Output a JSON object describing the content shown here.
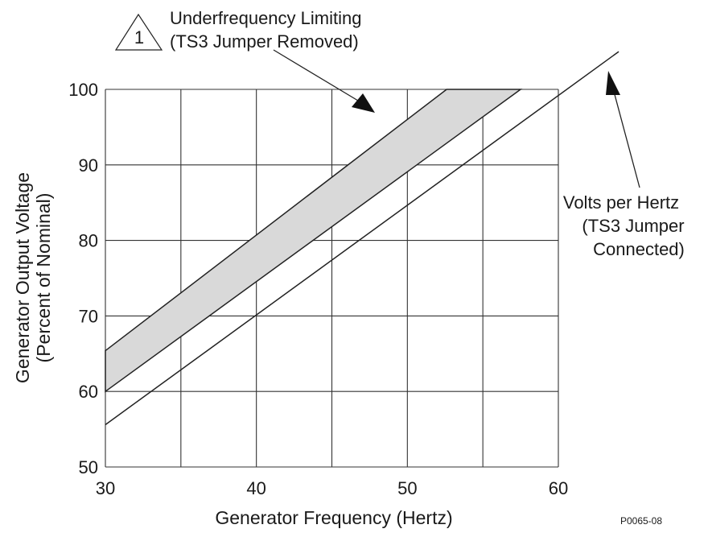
{
  "chart_data": {
    "type": "line",
    "xlabel": "Generator Frequency (Hertz)",
    "ylabel": [
      "Generator Output Voltage",
      "(Percent of Nominal)"
    ],
    "xlim": [
      30,
      60
    ],
    "ylim": [
      50,
      100
    ],
    "x_ticks": [
      30,
      40,
      50,
      60
    ],
    "y_ticks": [
      50,
      60,
      70,
      80,
      90,
      100
    ],
    "x_grid": [
      30,
      35,
      40,
      45,
      50,
      55,
      60
    ],
    "y_grid": [
      50,
      60,
      70,
      80,
      90,
      100
    ],
    "grid": true,
    "band": {
      "fill_color": "#d9d9d9",
      "upper": {
        "x": [
          30,
          52.6,
          57.5
        ],
        "y": [
          65.4,
          100,
          100
        ]
      },
      "lower": {
        "x": [
          30,
          57.5
        ],
        "y": [
          60,
          100
        ]
      }
    },
    "series": [
      {
        "x": [
          30,
          64
        ],
        "y": [
          55.6,
          105
        ]
      }
    ],
    "annotations": [
      {
        "marker": "1",
        "lines": [
          "Underfrequency Limiting",
          "(TS3 Jumper Removed)"
        ]
      },
      {
        "lines": [
          "Volts per Hertz",
          "(TS3 Jumper",
          "Connected)"
        ]
      }
    ],
    "figure_id": "P0065-08"
  }
}
